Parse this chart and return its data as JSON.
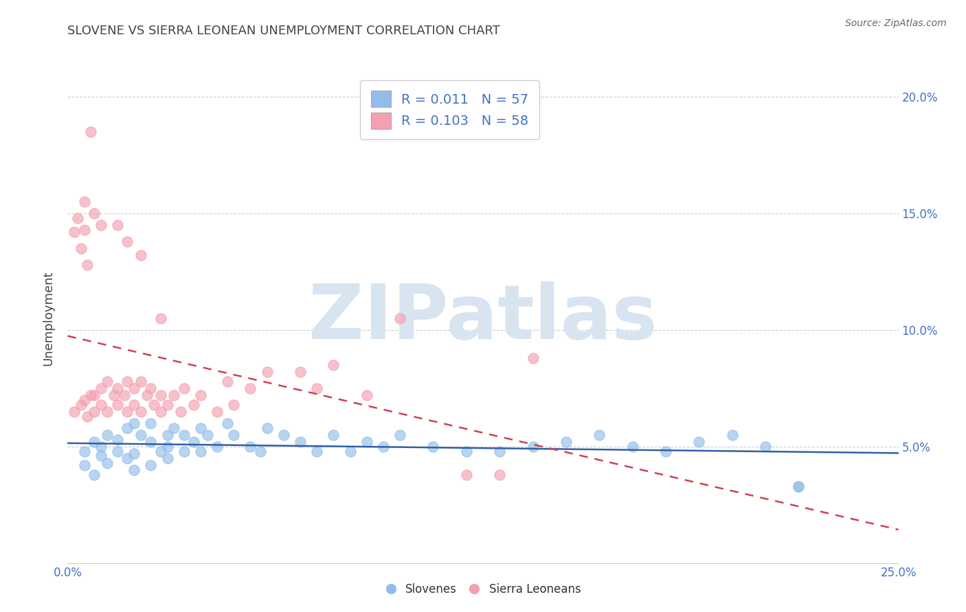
{
  "title": "SLOVENE VS SIERRA LEONEAN UNEMPLOYMENT CORRELATION CHART",
  "source": "Source: ZipAtlas.com",
  "ylabel": "Unemployment",
  "watermark": "ZIPatlas",
  "xlim": [
    0.0,
    0.25
  ],
  "ylim": [
    0.0,
    0.21
  ],
  "xticks": [
    0.0,
    0.05,
    0.1,
    0.15,
    0.2,
    0.25
  ],
  "xtick_labels": [
    "0.0%",
    "",
    "",
    "",
    "",
    "25.0%"
  ],
  "yticks": [
    0.05,
    0.1,
    0.15,
    0.2
  ],
  "ytick_labels": [
    "5.0%",
    "10.0%",
    "15.0%",
    "20.0%"
  ],
  "legend_R_blue": "R = 0.011",
  "legend_N_blue": "N = 57",
  "legend_R_pink": "R = 0.103",
  "legend_N_pink": "N = 58",
  "slovene_color": "#92bde8",
  "sierra_color": "#f4a0b0",
  "trendline_blue_color": "#3060a8",
  "trendline_pink_color": "#d04050",
  "background_color": "#ffffff",
  "grid_color": "#cccccc",
  "title_color": "#444444",
  "source_color": "#666666",
  "axis_label_color": "#444444",
  "tick_label_color": "#4472c4",
  "watermark_color": "#d8e4f0",
  "slovene_x": [
    0.005,
    0.008,
    0.01,
    0.01,
    0.012,
    0.015,
    0.015,
    0.018,
    0.018,
    0.02,
    0.02,
    0.022,
    0.025,
    0.025,
    0.028,
    0.03,
    0.03,
    0.032,
    0.035,
    0.035,
    0.038,
    0.04,
    0.04,
    0.042,
    0.045,
    0.048,
    0.05,
    0.055,
    0.058,
    0.06,
    0.065,
    0.07,
    0.075,
    0.08,
    0.085,
    0.09,
    0.095,
    0.1,
    0.11,
    0.12,
    0.13,
    0.14,
    0.15,
    0.16,
    0.17,
    0.18,
    0.19,
    0.2,
    0.21,
    0.22,
    0.005,
    0.008,
    0.012,
    0.02,
    0.025,
    0.03,
    0.22
  ],
  "slovene_y": [
    0.048,
    0.052,
    0.05,
    0.046,
    0.055,
    0.053,
    0.048,
    0.058,
    0.045,
    0.06,
    0.047,
    0.055,
    0.052,
    0.06,
    0.048,
    0.055,
    0.05,
    0.058,
    0.048,
    0.055,
    0.052,
    0.058,
    0.048,
    0.055,
    0.05,
    0.06,
    0.055,
    0.05,
    0.048,
    0.058,
    0.055,
    0.052,
    0.048,
    0.055,
    0.048,
    0.052,
    0.05,
    0.055,
    0.05,
    0.048,
    0.048,
    0.05,
    0.052,
    0.055,
    0.05,
    0.048,
    0.052,
    0.055,
    0.05,
    0.033,
    0.042,
    0.038,
    0.043,
    0.04,
    0.042,
    0.045,
    0.033
  ],
  "sierra_x": [
    0.002,
    0.004,
    0.005,
    0.006,
    0.007,
    0.008,
    0.008,
    0.01,
    0.01,
    0.012,
    0.012,
    0.014,
    0.015,
    0.015,
    0.017,
    0.018,
    0.018,
    0.02,
    0.02,
    0.022,
    0.022,
    0.024,
    0.025,
    0.026,
    0.028,
    0.028,
    0.03,
    0.032,
    0.034,
    0.035,
    0.038,
    0.04,
    0.045,
    0.048,
    0.05,
    0.055,
    0.06,
    0.07,
    0.075,
    0.08,
    0.09,
    0.1,
    0.12,
    0.13,
    0.14,
    0.002,
    0.003,
    0.004,
    0.005,
    0.005,
    0.006,
    0.007,
    0.008,
    0.01,
    0.015,
    0.018,
    0.022,
    0.028
  ],
  "sierra_y": [
    0.065,
    0.068,
    0.07,
    0.063,
    0.072,
    0.065,
    0.072,
    0.075,
    0.068,
    0.078,
    0.065,
    0.072,
    0.068,
    0.075,
    0.072,
    0.078,
    0.065,
    0.075,
    0.068,
    0.078,
    0.065,
    0.072,
    0.075,
    0.068,
    0.072,
    0.065,
    0.068,
    0.072,
    0.065,
    0.075,
    0.068,
    0.072,
    0.065,
    0.078,
    0.068,
    0.075,
    0.082,
    0.082,
    0.075,
    0.085,
    0.072,
    0.105,
    0.038,
    0.038,
    0.088,
    0.142,
    0.148,
    0.135,
    0.155,
    0.143,
    0.128,
    0.185,
    0.15,
    0.145,
    0.145,
    0.138,
    0.132,
    0.105
  ]
}
